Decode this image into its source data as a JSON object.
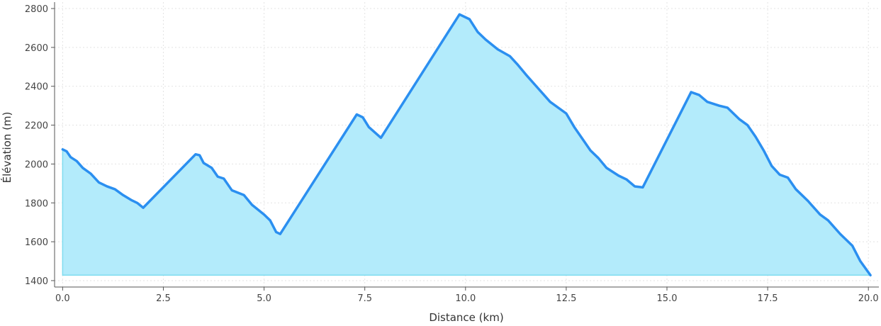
{
  "chart_data": {
    "type": "area",
    "x_label": "Distance (km)",
    "y_label": "Élévation (m)",
    "x": [
      0.0,
      0.1,
      0.2,
      0.35,
      0.5,
      0.7,
      0.9,
      1.1,
      1.3,
      1.5,
      1.7,
      1.85,
      2.0,
      3.3,
      3.4,
      3.5,
      3.7,
      3.85,
      4.0,
      4.2,
      4.5,
      4.7,
      5.0,
      5.15,
      5.3,
      5.4,
      7.3,
      7.45,
      7.6,
      7.9,
      9.85,
      10.1,
      10.3,
      10.5,
      10.8,
      11.1,
      11.3,
      11.5,
      11.8,
      12.1,
      12.5,
      12.7,
      12.9,
      13.1,
      13.3,
      13.5,
      13.8,
      14.0,
      14.2,
      14.4,
      15.6,
      15.8,
      16.0,
      16.3,
      16.5,
      16.8,
      17.0,
      17.2,
      17.4,
      17.6,
      17.8,
      18.0,
      18.2,
      18.5,
      18.8,
      19.0,
      19.3,
      19.6,
      19.8,
      20.05
    ],
    "series": [
      {
        "name": "Élévation",
        "color": "#2b8ff0",
        "fill": "#b3ebfb",
        "values": [
          2075,
          2065,
          2035,
          2015,
          1980,
          1950,
          1905,
          1885,
          1870,
          1840,
          1815,
          1800,
          1775,
          2050,
          2045,
          2005,
          1980,
          1935,
          1925,
          1865,
          1840,
          1790,
          1740,
          1710,
          1650,
          1640,
          2255,
          2240,
          2190,
          2135,
          2770,
          2745,
          2680,
          2640,
          2590,
          2555,
          2510,
          2460,
          2390,
          2320,
          2260,
          2190,
          2130,
          2070,
          2030,
          1980,
          1940,
          1920,
          1885,
          1880,
          2370,
          2355,
          2320,
          2300,
          2290,
          2230,
          2200,
          2140,
          2070,
          1990,
          1945,
          1930,
          1870,
          1810,
          1740,
          1710,
          1640,
          1580,
          1500,
          1428
        ]
      }
    ],
    "xlim": [
      -0.2,
      20.26
    ],
    "ylim": [
      1367,
      2833
    ],
    "xticks": [
      {
        "value": 0,
        "label": "0.0"
      },
      2.5,
      {
        "value": 5,
        "label": "5.0"
      },
      7.5,
      {
        "value": 10,
        "label": "10.0"
      },
      12.5,
      {
        "value": 15,
        "label": "15.0"
      },
      17.5,
      {
        "value": 20,
        "label": "20.0"
      }
    ],
    "yticks": [
      1400,
      1600,
      1800,
      2000,
      2200,
      2400,
      2600,
      2800
    ],
    "grid": true
  }
}
